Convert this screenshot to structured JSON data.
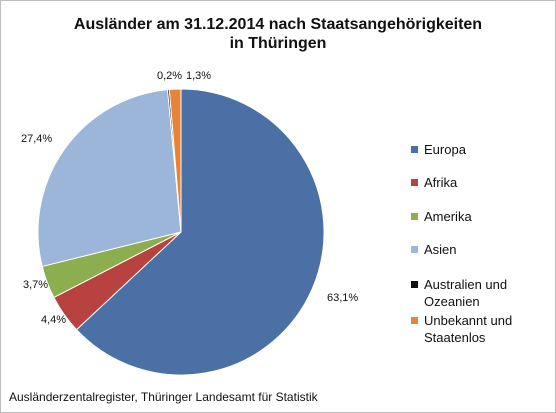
{
  "chart_data": {
    "type": "pie",
    "title_line1": "Ausländer am 31.12.2014 nach Staatsangehörigkeiten",
    "title_line2": "in Thüringen",
    "slices": [
      {
        "name": "Europa",
        "value": 63.1,
        "label": "63,1%",
        "color": "#4a70a6"
      },
      {
        "name": "Afrika",
        "value": 4.4,
        "label": "4,4%",
        "color": "#b8423f"
      },
      {
        "name": "Amerika",
        "value": 3.7,
        "label": "3,7%",
        "color": "#8cae4f"
      },
      {
        "name": "Asien",
        "value": 27.4,
        "label": "27,4%",
        "color": "#9bb6d9"
      },
      {
        "name": "Australien und Ozeanien",
        "value": 0.2,
        "label": "0,2%",
        "color": "#111111"
      },
      {
        "name": "Unbekannt und Staatenlos",
        "value": 1.3,
        "label": "1,3%",
        "color": "#e8833a"
      }
    ],
    "legend": [
      {
        "line1": "Europa",
        "line2": ""
      },
      {
        "line1": "Afrika",
        "line2": ""
      },
      {
        "line1": "Amerika",
        "line2": ""
      },
      {
        "line1": "Asien",
        "line2": ""
      },
      {
        "line1": "Australien und",
        "line2": "Ozeanien"
      },
      {
        "line1": "Unbekannt und",
        "line2": "Staatenlos"
      }
    ],
    "legend_position": "right",
    "source": "Ausländerzentalregister, Thüringer Landesamt für Statistik"
  }
}
